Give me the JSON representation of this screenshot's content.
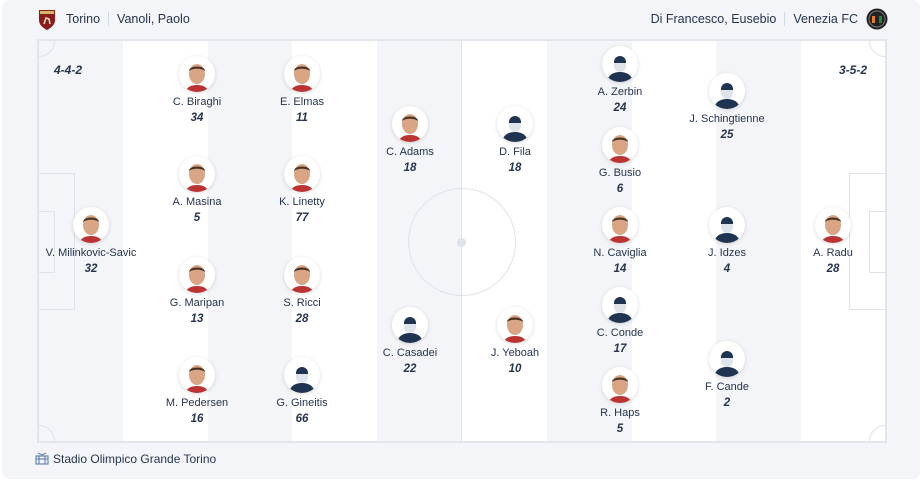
{
  "home": {
    "team": "Torino",
    "coach": "Vanoli, Paolo",
    "formation": "4-4-2",
    "color": "#8a1c1c",
    "players": [
      {
        "name": "V. Milinkovic-Savic",
        "number": "32",
        "photo": true
      },
      {
        "name": "C. Biraghi",
        "number": "34",
        "photo": true
      },
      {
        "name": "A. Masina",
        "number": "5",
        "photo": true
      },
      {
        "name": "G. Maripan",
        "number": "13",
        "photo": true
      },
      {
        "name": "M. Pedersen",
        "number": "16",
        "photo": true
      },
      {
        "name": "E. Elmas",
        "number": "11",
        "photo": true
      },
      {
        "name": "K. Linetty",
        "number": "77",
        "photo": true
      },
      {
        "name": "S. Ricci",
        "number": "28",
        "photo": true
      },
      {
        "name": "G. Gineitis",
        "number": "66",
        "photo": false
      },
      {
        "name": "C. Adams",
        "number": "18",
        "photo": true
      },
      {
        "name": "C. Casadei",
        "number": "22",
        "photo": false
      }
    ]
  },
  "away": {
    "team": "Venezia FC",
    "coach": "Di Francesco, Eusebio",
    "formation": "3-5-2",
    "color": "#f07a22",
    "players": [
      {
        "name": "D. Fila",
        "number": "18",
        "photo": false
      },
      {
        "name": "J. Yeboah",
        "number": "10",
        "photo": true
      },
      {
        "name": "A. Zerbin",
        "number": "24",
        "photo": false
      },
      {
        "name": "G. Busio",
        "number": "6",
        "photo": true
      },
      {
        "name": "N. Caviglia",
        "number": "14",
        "photo": true
      },
      {
        "name": "C. Conde",
        "number": "17",
        "photo": false
      },
      {
        "name": "R. Haps",
        "number": "5",
        "photo": true
      },
      {
        "name": "J. Schingtienne",
        "number": "25",
        "photo": false
      },
      {
        "name": "J. Idzes",
        "number": "4",
        "photo": false
      },
      {
        "name": "F. Cande",
        "number": "2",
        "photo": false
      },
      {
        "name": "A. Radu",
        "number": "28",
        "photo": true
      }
    ]
  },
  "venue": {
    "name": "Stadio Olimpico Grande Torino",
    "icon": "stadium-icon"
  }
}
